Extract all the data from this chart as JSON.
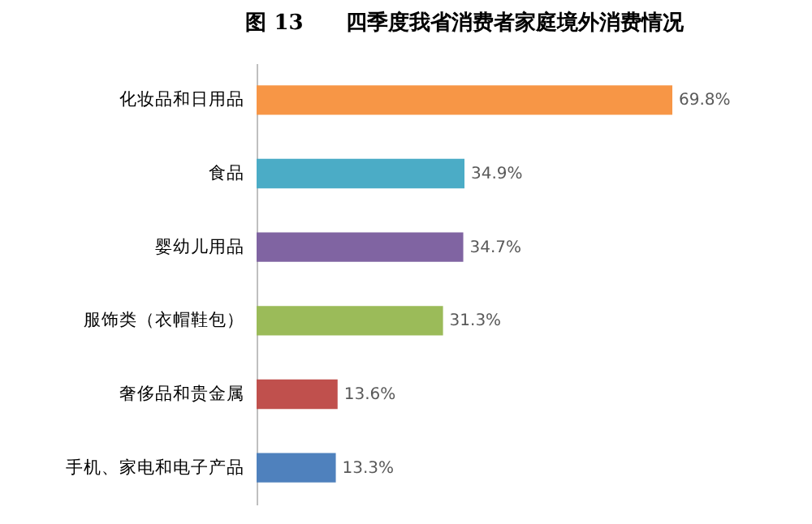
{
  "chart_data": {
    "type": "bar",
    "orientation": "horizontal",
    "title": "图 13　　四季度我省消费者家庭境外消费情况",
    "categories": [
      "化妆品和日用品",
      "食品",
      "婴幼儿用品",
      "服饰类（衣帽鞋包）",
      "奢侈品和贵金属",
      "手机、家电和电子产品"
    ],
    "values": [
      69.8,
      34.9,
      34.7,
      31.3,
      13.6,
      13.3
    ],
    "colors": [
      "#f79646",
      "#4bacc6",
      "#8064a2",
      "#9bbb59",
      "#c0504d",
      "#4f81bd"
    ],
    "value_labels": [
      "69.8%",
      "34.9%",
      "34.7%",
      "31.3%",
      "13.6%",
      "13.3%"
    ]
  }
}
